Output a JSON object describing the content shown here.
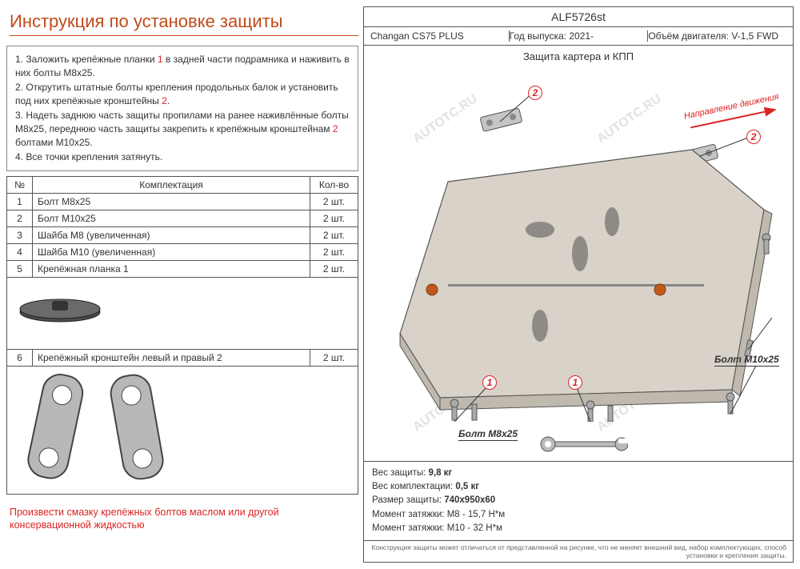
{
  "title": "Инструкция по установке защиты",
  "instructions": {
    "full_html": "1. Заложить крепёжные планки <span class='red'>1</span> в задней части подрамника и наживить в них болты М8х25.<br>2. Открутить штатные болты крепления продольных балок и установить под них крепёжные кронштейны <span class='red'>2</span>.<br>3. Надеть заднюю часть защиты пропилами на ранее наживлённые болты М8х25, переднюю часть защиты закрепить к крепёжным кронштейнам <span class='red'>2</span> болтами М10х25.<br>4. Все точки крепления затянуть."
  },
  "parts_table": {
    "headers": {
      "num": "№",
      "name": "Комплектация",
      "qty": "Кол-во"
    },
    "rows": [
      {
        "num": "1",
        "name": "Болт М8х25",
        "qty": "2 шт."
      },
      {
        "num": "2",
        "name": "Болт М10х25",
        "qty": "2 шт."
      },
      {
        "num": "3",
        "name": "Шайба М8 (увеличенная)",
        "qty": "2 шт."
      },
      {
        "num": "4",
        "name": "Шайба М10 (увеличенная)",
        "qty": "2 шт."
      },
      {
        "num": "5",
        "name_html": "Крепёжная планка <span class='red'>1</span>",
        "qty": "2 шт.",
        "img": "plank"
      },
      {
        "num": "6",
        "name_html": "Крепёжный кронштейн левый и правый <span class='red'>2</span>",
        "qty": "2 шт.",
        "img": "brackets"
      }
    ]
  },
  "bottom_note": "Произвести смазку крепёжных болтов маслом или другой консервационной жидкостью",
  "header": {
    "partno": "ALF5726st",
    "model": "Changan CS75 PLUS",
    "year_label": "Год выпуска:",
    "year": "2021-",
    "engine_label": "Объём двигателя:",
    "engine": "V-1,5 FWD"
  },
  "drawing": {
    "title": "Защита картера и КПП",
    "direction": "Направление движения",
    "callouts": {
      "c1a": "1",
      "c1b": "1",
      "c2a": "2",
      "c2b": "2"
    },
    "bolt1": "Болт М8х25",
    "bolt2": "Болт М10x25",
    "plate_color": "#d8d2c8",
    "bracket_color": "#c5c5c5",
    "leader_color": "#333333",
    "red": "#d22222"
  },
  "specs": {
    "l1_label": "Вес защиты:",
    "l1_val": "9,8 кг",
    "l2_label": "Вес комплектации:",
    "l2_val": "0,5 кг",
    "l3_label": "Размер защиты:",
    "l3_val": "740x950x60",
    "l4_label": "Момент затяжки:",
    "l4_val": "M8 - 15,7 Н*м",
    "l5_label": "Момент затяжки:",
    "l5_val": "M10 - 32 Н*м"
  },
  "footer": "Конструкция защиты может отличаться от представленной на рисунке, что не меняет внешний вид, набор комплектующих, способ установки и крепления защиты.",
  "watermark": "AUTOTC.RU"
}
